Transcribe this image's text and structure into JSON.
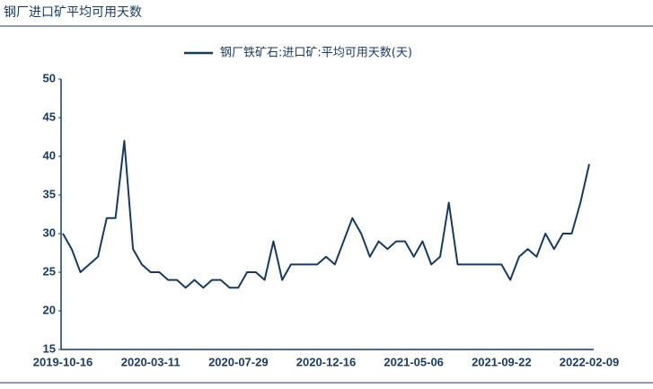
{
  "chart_data": {
    "type": "line",
    "title": "钢厂进口矿平均可用天数",
    "categories": [
      "2019-10-16",
      null,
      null,
      null,
      null,
      null,
      null,
      null,
      null,
      null,
      "2020-03-11",
      null,
      null,
      null,
      null,
      null,
      null,
      null,
      null,
      null,
      "2020-07-29",
      null,
      null,
      null,
      null,
      null,
      null,
      null,
      null,
      null,
      "2020-12-16",
      null,
      null,
      null,
      null,
      null,
      null,
      null,
      null,
      null,
      "2021-05-06",
      null,
      null,
      null,
      null,
      null,
      null,
      null,
      null,
      null,
      "2021-09-22",
      null,
      null,
      null,
      null,
      null,
      null,
      null,
      null,
      null,
      "2022-02-09"
    ],
    "series": [
      {
        "name": "钢厂铁矿石:进口矿:平均可用天数(天)",
        "color": "#1a3a5c",
        "values": [
          30,
          28,
          25,
          26,
          27,
          32,
          32,
          42,
          28,
          26,
          25,
          25,
          24,
          24,
          23,
          24,
          23,
          24,
          24,
          23,
          23,
          25,
          25,
          24,
          29,
          24,
          26,
          26,
          26,
          26,
          27,
          26,
          29,
          32,
          30,
          27,
          29,
          28,
          29,
          29,
          27,
          29,
          26,
          27,
          34,
          26,
          26,
          26,
          26,
          26,
          26,
          24,
          27,
          28,
          27,
          30,
          28,
          30,
          30,
          34,
          39
        ]
      }
    ],
    "ylim": [
      15,
      50
    ],
    "yticks": [
      15,
      20,
      25,
      30,
      35,
      40,
      45,
      50
    ],
    "grid": false,
    "legend": "top"
  }
}
